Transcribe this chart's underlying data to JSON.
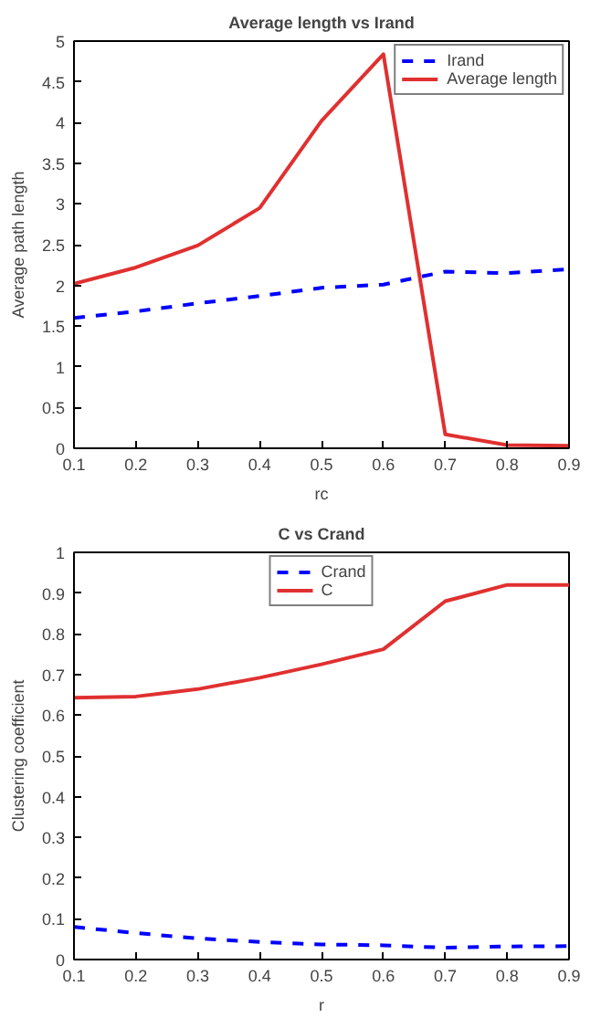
{
  "chart_data": [
    {
      "type": "line",
      "title": "Average length vs Irand",
      "xlabel": "rc",
      "ylabel": "Average path length",
      "x": [
        0.1,
        0.2,
        0.3,
        0.4,
        0.5,
        0.6,
        0.7,
        0.8,
        0.9
      ],
      "series": [
        {
          "name": "Irand",
          "color": "#0000ff",
          "line_style": "dashed",
          "values": [
            1.6,
            1.68,
            1.78,
            1.87,
            1.97,
            2.01,
            2.17,
            2.15,
            2.2
          ]
        },
        {
          "name": "Average length",
          "color": "#e03030",
          "line_style": "solid",
          "values": [
            2.02,
            2.22,
            2.49,
            2.95,
            4.02,
            4.84,
            0.17,
            0.04,
            0.03
          ]
        }
      ],
      "xlim": [
        0.1,
        0.9
      ],
      "xticks": [
        0.1,
        0.2,
        0.3,
        0.4,
        0.5,
        0.6,
        0.7,
        0.8,
        0.9
      ],
      "ylim": [
        0,
        5
      ],
      "yticks": [
        0,
        0.5,
        1,
        1.5,
        2,
        2.5,
        3,
        3.5,
        4,
        4.5,
        5
      ],
      "legend": "top right",
      "grid": false
    },
    {
      "type": "line",
      "title": "C vs Crand",
      "xlabel": "r",
      "ylabel": "Clustering coefficient",
      "x": [
        0.1,
        0.2,
        0.3,
        0.4,
        0.5,
        0.6,
        0.7,
        0.8,
        0.9
      ],
      "series": [
        {
          "name": "Crand",
          "color": "#0000ff",
          "line_style": "dashed",
          "values": [
            0.08,
            0.065,
            0.052,
            0.043,
            0.037,
            0.035,
            0.029,
            0.032,
            0.033
          ]
        },
        {
          "name": "C",
          "color": "#e03030",
          "line_style": "solid",
          "values": [
            0.643,
            0.646,
            0.664,
            0.692,
            0.725,
            0.762,
            0.88,
            0.92,
            0.92
          ]
        }
      ],
      "xlim": [
        0.1,
        0.9
      ],
      "xticks": [
        0.1,
        0.2,
        0.3,
        0.4,
        0.5,
        0.6,
        0.7,
        0.8,
        0.9
      ],
      "ylim": [
        0,
        1
      ],
      "yticks": [
        0,
        0.1,
        0.2,
        0.3,
        0.4,
        0.5,
        0.6,
        0.7,
        0.8,
        0.9,
        1
      ],
      "legend": "top center",
      "grid": false
    }
  ]
}
